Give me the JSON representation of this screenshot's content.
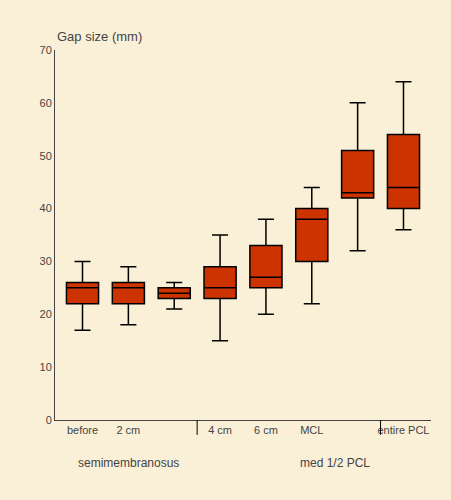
{
  "chart_data": {
    "type": "box",
    "ylabel": "Gap size (mm)",
    "categories": [
      "before",
      "2 cm",
      null,
      "4 cm",
      "6 cm",
      "MCL",
      null,
      "entire PCL"
    ],
    "q1": [
      22,
      22,
      23,
      23,
      25,
      30,
      42,
      40
    ],
    "median": [
      25,
      25,
      24,
      25,
      27,
      38,
      43,
      44
    ],
    "q3": [
      26,
      26,
      25,
      29,
      33,
      40,
      51,
      54
    ],
    "whislo": [
      17,
      18,
      21,
      15,
      20,
      22,
      32,
      36
    ],
    "whishi": [
      30,
      29,
      26,
      35,
      38,
      44,
      60,
      64
    ],
    "separators": [
      2.5,
      6.5
    ],
    "group_labels": [
      {
        "label": "semimembranosus",
        "x": 1.0
      },
      {
        "label": "med 1/2 PCL",
        "x": 5.5
      }
    ],
    "ylim": [
      0,
      70
    ],
    "yticks": [
      0,
      10,
      20,
      30,
      40,
      50,
      60,
      70
    ],
    "grid": false,
    "color": "#CC3300",
    "edge_color": "#000000",
    "background_color": "#FAF0D7"
  }
}
